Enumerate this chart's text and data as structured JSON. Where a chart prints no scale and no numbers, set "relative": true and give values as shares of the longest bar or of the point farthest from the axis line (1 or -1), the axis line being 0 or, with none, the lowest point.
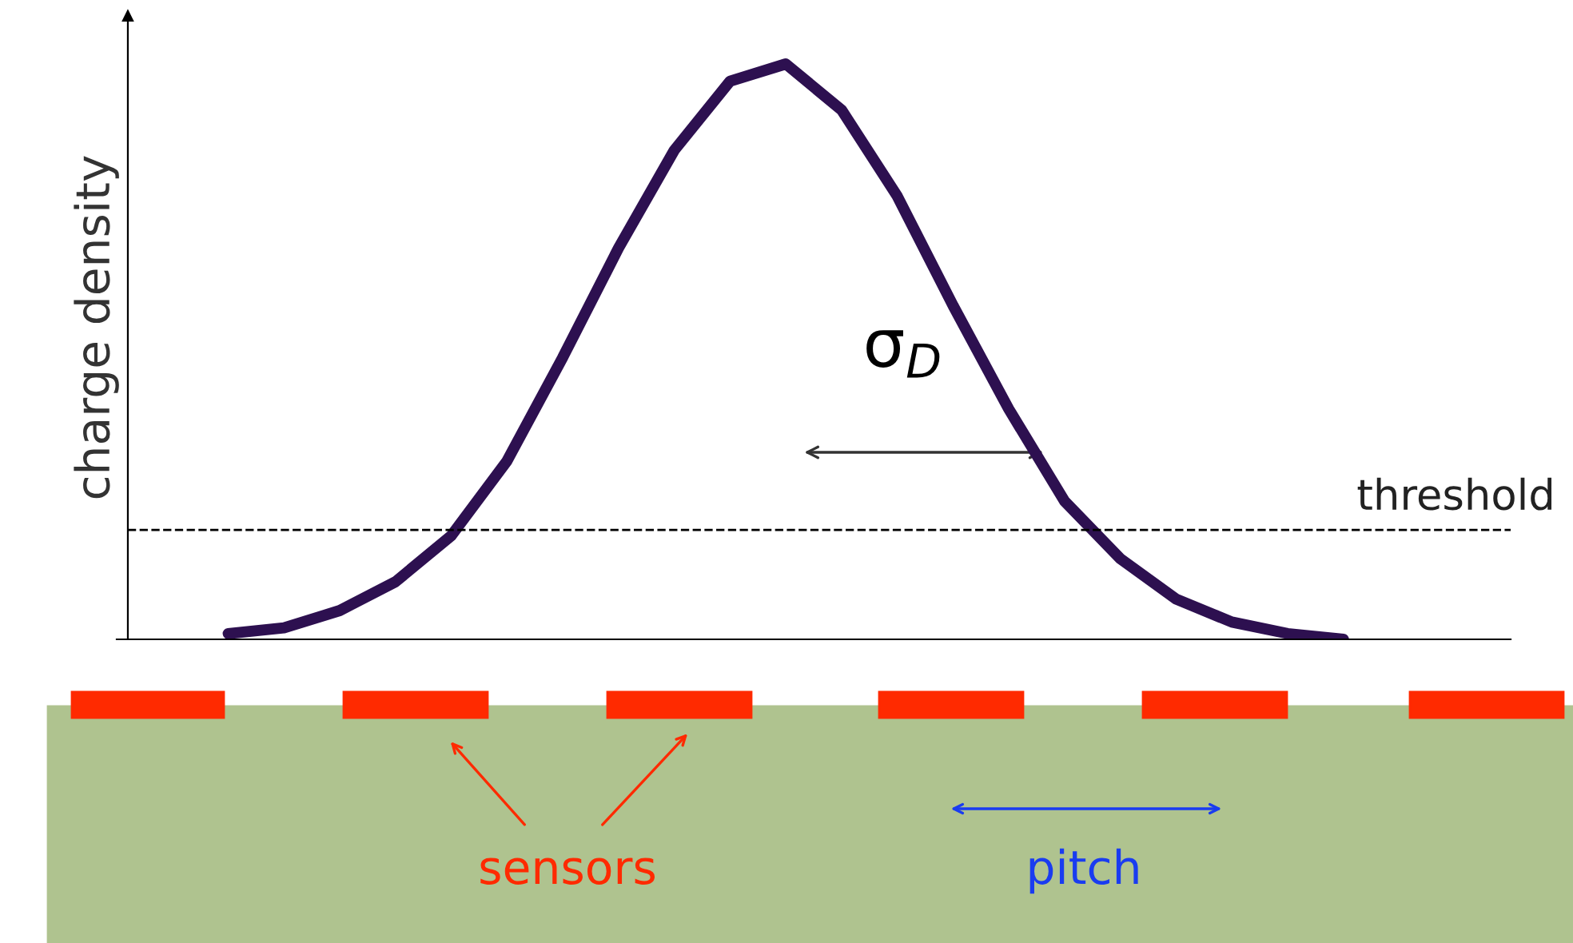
{
  "chart_data": {
    "type": "line",
    "relative": true,
    "ylabel": "charge density",
    "categories": [
      null,
      null,
      null,
      null,
      null,
      null,
      null,
      null,
      null,
      null,
      null,
      null,
      null,
      null,
      null,
      null,
      null,
      null,
      null,
      null,
      null,
      null,
      null,
      null,
      null,
      null
    ],
    "series": [
      {
        "color": "#2d1050",
        "values": [
          null,
          null,
          0.01,
          0.02,
          0.05,
          0.1,
          0.18,
          0.31,
          0.49,
          0.68,
          0.85,
          0.97,
          1.0,
          0.92,
          0.77,
          0.58,
          0.4,
          0.24,
          0.14,
          0.07,
          0.03,
          0.01,
          0.0,
          null,
          null,
          null
        ]
      }
    ],
    "ref_lines": [
      {
        "axis": "y",
        "value": 0.19,
        "label": "threshold",
        "line_style": "dashed",
        "color": "#000000"
      }
    ],
    "annotations": [
      "σ$_{D}$",
      "sensors",
      "pitch"
    ],
    "marker": "none",
    "line_style": "solid",
    "grid": false,
    "legend": false
  }
}
